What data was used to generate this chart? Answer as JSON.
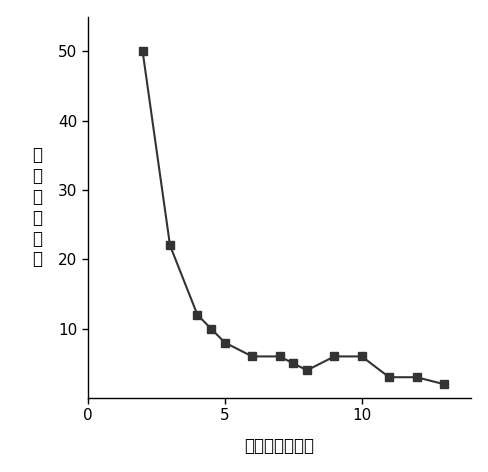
{
  "x": [
    2,
    3,
    4,
    4.5,
    5,
    6,
    7,
    7.5,
    8,
    9,
    10,
    11,
    12,
    13
  ],
  "y": [
    50,
    22,
    12,
    10,
    8,
    6,
    6,
    5,
    4,
    6,
    6,
    3,
    3,
    2
  ],
  "xlabel": "ベリファイ回数",
  "ylabel": "不良ビット数",
  "xlim": [
    0,
    14
  ],
  "ylim": [
    0,
    55
  ],
  "xticks": [
    0,
    5,
    10
  ],
  "yticks": [
    10,
    20,
    30,
    40,
    50
  ],
  "line_color": "#333333",
  "marker_color": "#333333",
  "marker": "s",
  "marker_size": 6,
  "linewidth": 1.5,
  "background_color": "#ffffff",
  "label_fontsize": 12,
  "tick_fontsize": 11
}
